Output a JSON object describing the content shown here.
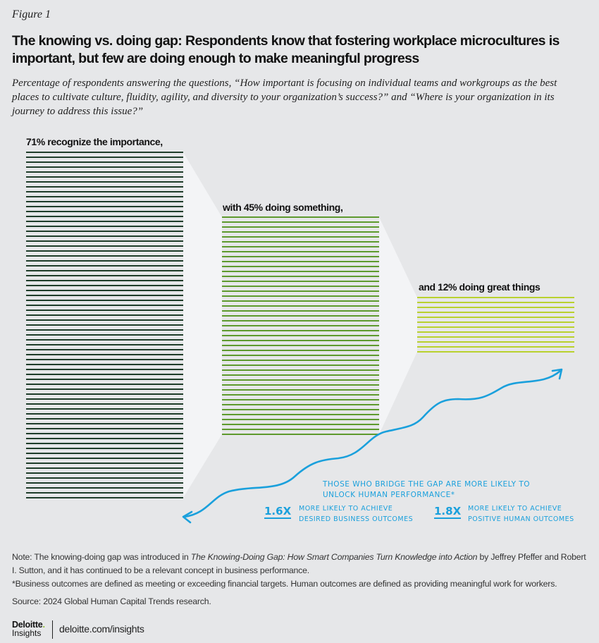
{
  "figure_label": "Figure 1",
  "title": "The knowing vs. doing gap: Respondents know that fostering workplace microcultures is important, but few are doing enough to make meaningful progress",
  "subtitle": "Percentage of respondents answering the questions, “How important is focusing on individual teams and workgroups as the best places to cultivate culture, fluidity, agility, and diversity to your organization’s success?” and “Where is your organization in its journey to address this issue?”",
  "chart_data": {
    "type": "bar",
    "encoding": "one horizontal line per percentage point",
    "categories": [
      "recognize the importance",
      "doing something",
      "doing great things"
    ],
    "values": [
      71,
      45,
      12
    ],
    "unit": "%",
    "labels": [
      "71% recognize the importance,",
      "with 45% doing something,",
      "and 12% doing great things"
    ],
    "colors": [
      "#1f3d2a",
      "#5e9a2e",
      "#b9d12e"
    ]
  },
  "annotation": {
    "headline": "Those who bridge the gap are more likely to unlock human performance*",
    "stats": [
      {
        "multiplier": "1.6X",
        "text": "More likely to achieve desired business outcomes"
      },
      {
        "multiplier": "1.8X",
        "text": "More likely to achieve positive human outcomes"
      }
    ],
    "color": "#1aa0dc"
  },
  "notes": {
    "note_prefix": "Note: The knowing-doing gap was introduced in ",
    "note_book": "The Knowing-Doing Gap: How Smart Companies Turn Knowledge into Action",
    "note_suffix": " by Jeffrey Pfeffer and Robert I. Sutton, and it has continued to be a relevant concept in business performance.",
    "footnote": "*Business outcomes are defined as meeting or exceeding financial targets. Human outcomes are defined as providing meaningful work for workers.",
    "source": "Source: 2024 Global Human Capital Trends research."
  },
  "footer": {
    "logo_name": "Deloitte",
    "logo_dot": ".",
    "logo_sub": "Insights",
    "url": "deloitte.com/insights"
  }
}
